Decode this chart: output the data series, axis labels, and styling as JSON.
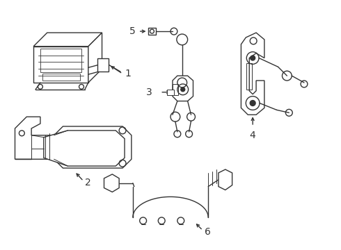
{
  "background_color": "#ffffff",
  "line_color": "#333333",
  "line_width": 1.0,
  "label_fontsize": 9,
  "figsize": [
    4.9,
    3.6
  ],
  "dpi": 100
}
